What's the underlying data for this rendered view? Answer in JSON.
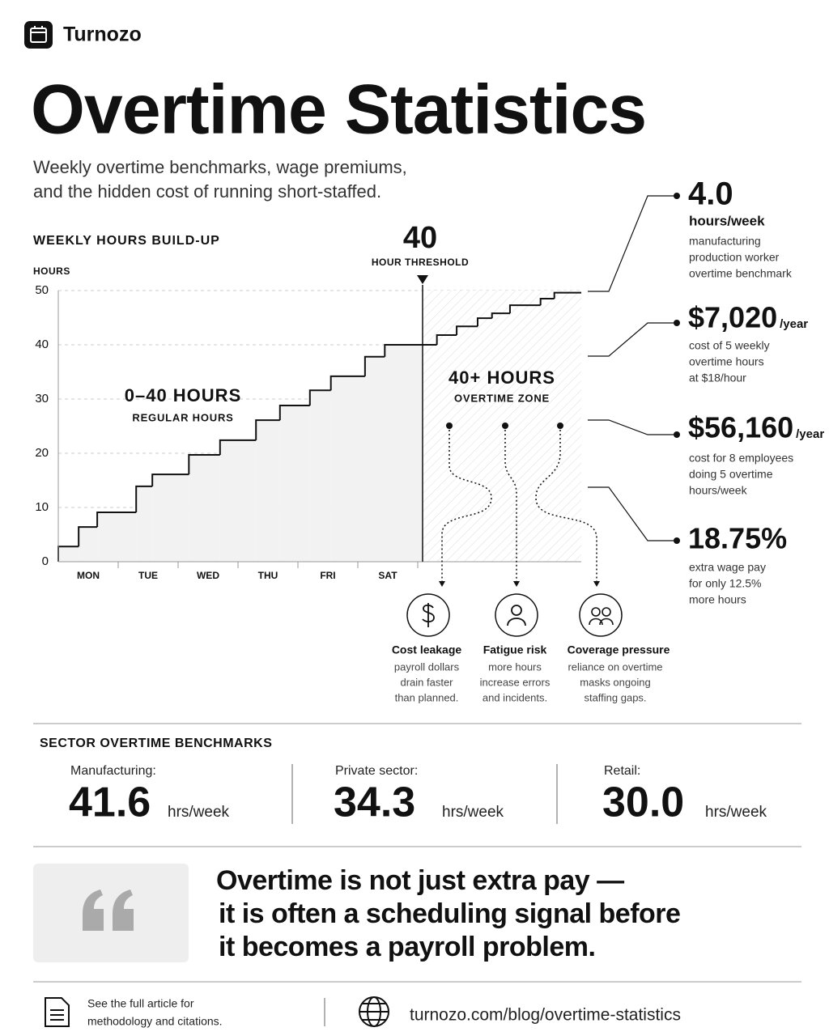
{
  "brand": "Turnozo",
  "header": {
    "title": "Overtime Statistics",
    "subtitle": [
      "Weekly overtime benchmarks, wage premiums,",
      "and the hidden cost of running short-staffed."
    ]
  },
  "chart_data": {
    "type": "step",
    "title": "WEEKLY HOURS BUILD-UP",
    "y_label": "HOURS",
    "categories": [
      "MON",
      "TUE",
      "WED",
      "THU",
      "FRI",
      "SAT"
    ],
    "x": [
      0,
      0.34,
      0.65,
      1.3,
      1.57,
      2.18,
      2.7,
      3.3,
      3.7,
      4.2,
      4.55,
      5.12,
      5.45,
      6.32,
      6.65,
      7.0,
      7.24,
      7.54,
      8.05,
      8.28
    ],
    "values": [
      2.8,
      6.4,
      9.1,
      13.9,
      16.1,
      19.7,
      22.4,
      26.1,
      28.8,
      31.6,
      34.2,
      37.8,
      40,
      41.8,
      43.4,
      44.9,
      45.8,
      47.3,
      48.5,
      49.6
    ],
    "xlim": [
      0,
      8.73
    ],
    "ylim": [
      0,
      50
    ],
    "yticks": [
      0,
      10,
      20,
      30,
      40,
      50
    ],
    "grid": true,
    "color": "#111111",
    "threshold": {
      "value": 40,
      "label": "HOUR THRESHOLD"
    },
    "annotations": [
      {
        "title": "0–40 HOURS",
        "subtitle": "REGULAR HOURS"
      },
      {
        "title": "40+ HOURS",
        "subtitle": "OVERTIME ZONE"
      }
    ]
  },
  "impacts": [
    {
      "title": "Cost leakage",
      "lines": [
        "payroll dollars",
        "drain faster",
        "than planned."
      ]
    },
    {
      "title": "Fatigue risk",
      "lines": [
        "more hours",
        "increase errors",
        "and incidents."
      ]
    },
    {
      "title": "Coverage pressure",
      "lines": [
        "reliance on overtime",
        "masks ongoing",
        "staffing gaps."
      ]
    }
  ],
  "stats": [
    {
      "value": "4.0",
      "unit": "hours/week",
      "lines": [
        "manufacturing",
        "production worker",
        "overtime benchmark"
      ]
    },
    {
      "value": "$7,020",
      "unit": "/year",
      "lines": [
        "cost of 5 weekly",
        "overtime hours",
        "at $18/hour"
      ]
    },
    {
      "value": "$56,160",
      "unit": "/year",
      "lines": [
        "cost for 8 employees",
        "doing 5 overtime",
        "hours/week"
      ]
    },
    {
      "value": "18.75%",
      "lines": [
        "extra wage pay",
        "for only 12.5%",
        "more hours"
      ]
    }
  ],
  "sectors": {
    "title": "SECTOR OVERTIME BENCHMARKS",
    "items": [
      {
        "label": "Manufacturing:",
        "value": "41.6",
        "unit": "hrs/week"
      },
      {
        "label": "Private sector:",
        "value": "34.3",
        "unit": "hrs/week"
      },
      {
        "label": "Retail:",
        "value": "30.0",
        "unit": "hrs/week"
      }
    ]
  },
  "quote": {
    "lines": [
      "Overtime is not just extra pay —",
      "it is often a scheduling signal before",
      "it becomes a payroll problem."
    ]
  },
  "footer": {
    "note": [
      "See the full article for",
      "methodology and citations."
    ],
    "url": "turnozo.com/blog/overtime-statistics"
  }
}
